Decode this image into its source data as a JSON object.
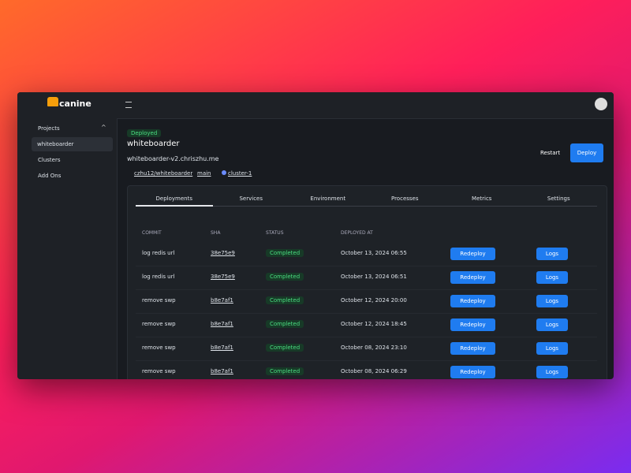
{
  "brand": "canine",
  "sidebar": {
    "items": [
      "Projects",
      "whiteboarder",
      "Clusters",
      "Add Ons"
    ]
  },
  "project": {
    "status": "Deployed",
    "name": "whiteboarder",
    "url": "whiteboarder-v2.chriszhu.me",
    "repo": "czhu12/whiteboarder",
    "branch": "main",
    "cluster": "cluster-1",
    "actions": [
      "Restart",
      "Deploy"
    ]
  },
  "tabs": [
    "Deployments",
    "Services",
    "Environment",
    "Processes",
    "Metrics",
    "Settings"
  ],
  "table": {
    "headers": [
      "COMMIT",
      "SHA",
      "STATUS",
      "DEPLOYED AT"
    ],
    "rows": [
      [
        "log redis url",
        "38e75e9",
        "Completed",
        "October 13, 2024 06:55",
        "Redeploy",
        "Logs"
      ],
      [
        "log redis url",
        "38e75e9",
        "Completed",
        "October 13, 2024 06:51",
        "Redeploy",
        "Logs"
      ],
      [
        "remove swp",
        "b8e7af1",
        "Completed",
        "October 12, 2024 20:00",
        "Redeploy",
        "Logs"
      ],
      [
        "remove swp",
        "b8e7af1",
        "Completed",
        "October 12, 2024 18:45",
        "Redeploy",
        "Logs"
      ],
      [
        "remove swp",
        "b8e7af1",
        "Completed",
        "October 08, 2024 23:10",
        "Redeploy",
        "Logs"
      ],
      [
        "remove swp",
        "b8e7af1",
        "Completed",
        "October 08, 2024 06:29",
        "Redeploy",
        "Logs"
      ]
    ]
  }
}
